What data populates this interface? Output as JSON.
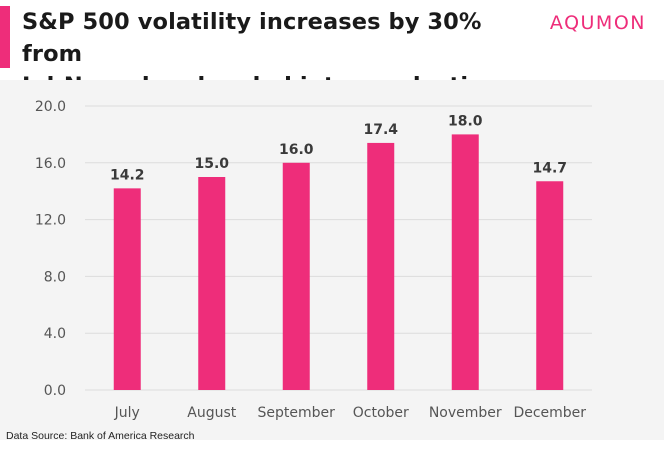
{
  "header": {
    "title_line1": "S&P 500 volatility increases by 30% from",
    "title_line2": "Jul-Nov when headed into an election",
    "brand": "AQUMON"
  },
  "footer": {
    "source": "Data Source: Bank of America Research"
  },
  "colors": {
    "accent": "#ee2d7a",
    "bar": "#ee2d7a",
    "grid": "#dcdcdc",
    "tick_text": "#555555",
    "label_text": "#3a3a3a"
  },
  "chart_data": {
    "type": "bar",
    "categories": [
      "July",
      "August",
      "September",
      "October",
      "November",
      "December"
    ],
    "values": [
      14.2,
      15.0,
      16.0,
      17.4,
      18.0,
      14.7
    ],
    "value_labels": [
      "14.2",
      "15.0",
      "16.0",
      "17.4",
      "18.0",
      "14.7"
    ],
    "ylim": [
      0,
      20
    ],
    "yticks": [
      "0.0",
      "4.0",
      "8.0",
      "12.0",
      "16.0",
      "20.0"
    ],
    "ytick_values": [
      0,
      4,
      8,
      12,
      16,
      20
    ],
    "grid": true
  }
}
